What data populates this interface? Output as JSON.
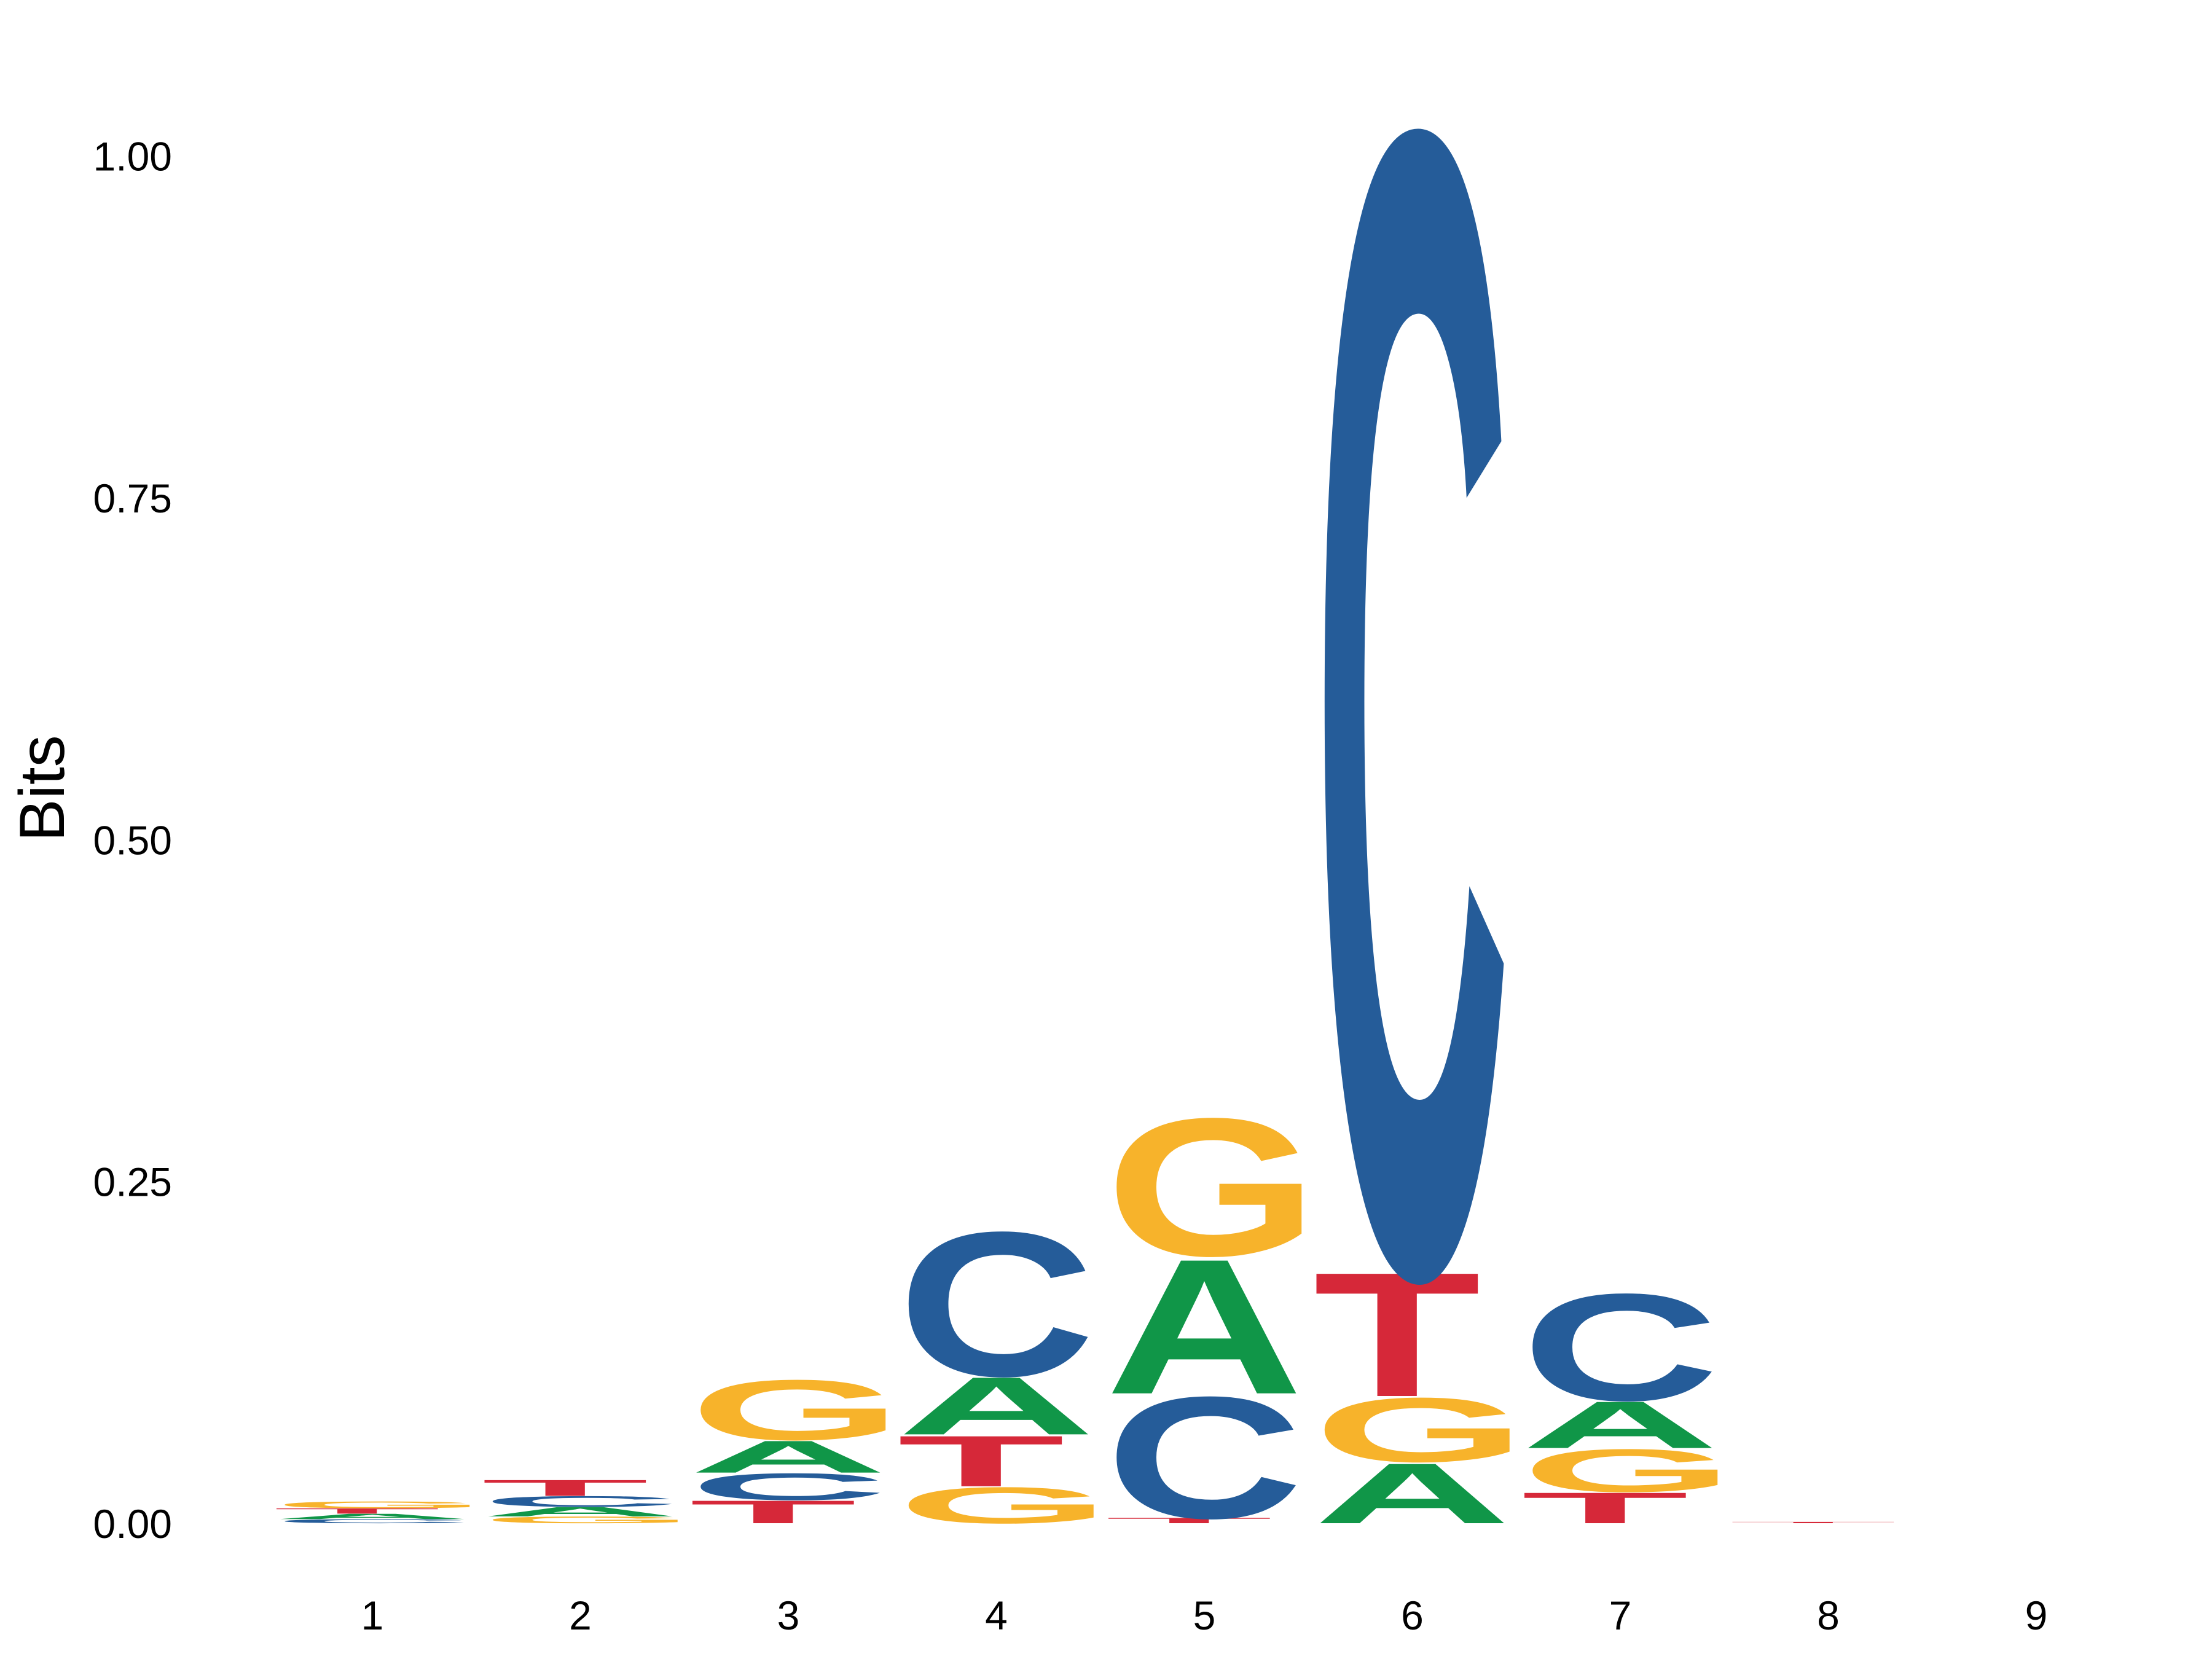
{
  "chart_data": {
    "type": "sequence-logo",
    "ylabel": "Bits",
    "ylim": [
      -0.04,
      1.06
    ],
    "y_ticks": [
      "0.00",
      "0.25",
      "0.50",
      "0.75",
      "1.00"
    ],
    "y_tick_values": [
      0,
      0.25,
      0.5,
      0.75,
      1.0
    ],
    "grid": false,
    "colors": {
      "A": "#109648",
      "C": "#255C99",
      "G": "#F7B32B",
      "T": "#D62839"
    },
    "positions": [
      {
        "label": "1",
        "stack": [
          {
            "base": "C",
            "bits": 0.003
          },
          {
            "base": "A",
            "bits": 0.004
          },
          {
            "base": "T",
            "bits": 0.004
          },
          {
            "base": "G",
            "bits": 0.005
          }
        ]
      },
      {
        "label": "2",
        "stack": [
          {
            "base": "G",
            "bits": 0.005
          },
          {
            "base": "A",
            "bits": 0.007
          },
          {
            "base": "C",
            "bits": 0.008
          },
          {
            "base": "T",
            "bits": 0.012
          }
        ]
      },
      {
        "label": "3",
        "stack": [
          {
            "base": "T",
            "bits": 0.017
          },
          {
            "base": "C",
            "bits": 0.02
          },
          {
            "base": "A",
            "bits": 0.024
          },
          {
            "base": "G",
            "bits": 0.045
          }
        ]
      },
      {
        "label": "4",
        "stack": [
          {
            "base": "G",
            "bits": 0.027
          },
          {
            "base": "T",
            "bits": 0.038
          },
          {
            "base": "A",
            "bits": 0.043
          },
          {
            "base": "C",
            "bits": 0.108
          }
        ]
      },
      {
        "label": "5",
        "stack": [
          {
            "base": "T",
            "bits": 0.004
          },
          {
            "base": "C",
            "bits": 0.091
          },
          {
            "base": "A",
            "bits": 0.101
          },
          {
            "base": "G",
            "bits": 0.103
          }
        ]
      },
      {
        "label": "6",
        "stack": [
          {
            "base": "A",
            "bits": 0.045
          },
          {
            "base": "G",
            "bits": 0.048
          },
          {
            "base": "T",
            "bits": 0.093
          },
          {
            "base": "C",
            "bits": 0.855
          }
        ]
      },
      {
        "label": "7",
        "stack": [
          {
            "base": "T",
            "bits": 0.023
          },
          {
            "base": "G",
            "bits": 0.032
          },
          {
            "base": "A",
            "bits": 0.035
          },
          {
            "base": "C",
            "bits": 0.08
          }
        ]
      },
      {
        "label": "8",
        "stack": [
          {
            "base": "T",
            "bits": 0.001
          }
        ]
      },
      {
        "label": "9",
        "stack": []
      }
    ]
  }
}
